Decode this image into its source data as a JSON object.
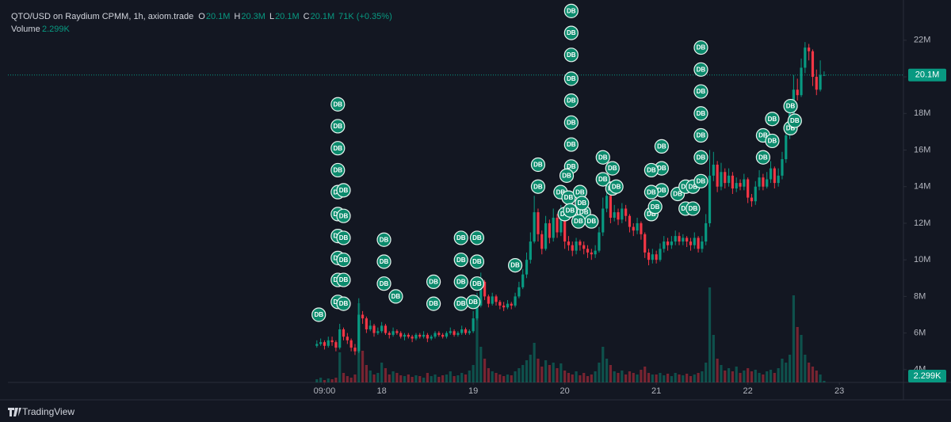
{
  "chart_data": {
    "type": "candlestick",
    "title": "QTO/USD on Raydium CPMM, 1h, axiom.trade",
    "legend": [
      {
        "key": "O",
        "value": "20.1M"
      },
      {
        "key": "H",
        "value": "20.3M"
      },
      {
        "key": "L",
        "value": "20.1M"
      },
      {
        "key": "C",
        "value": "20.1M"
      }
    ],
    "change": "71K (+0.35%)",
    "volume_label": "Volume",
    "volume_value": "2.299K",
    "last_price": {
      "value": 20.1,
      "label": "20.1M"
    },
    "last_volume_label": "2.299K",
    "brand": "TradingView",
    "up_color": "#089981",
    "down_color": "#f23645",
    "marker_color": "#0b8a6c",
    "xlim": [
      -74,
      160.8
    ],
    "ylim": [
      3.3,
      24.2
    ],
    "xticks": [
      {
        "value": 9,
        "label": "09:00"
      },
      {
        "value": 24,
        "label": "18"
      },
      {
        "value": 48,
        "label": "19"
      },
      {
        "value": 72,
        "label": "20"
      },
      {
        "value": 96,
        "label": "21"
      },
      {
        "value": 120,
        "label": "22"
      },
      {
        "value": 144,
        "label": "23"
      }
    ],
    "yticks": [
      {
        "value": 4,
        "label": "4M"
      },
      {
        "value": 6,
        "label": "6M"
      },
      {
        "value": 8,
        "label": "8M"
      },
      {
        "value": 10,
        "label": "10M"
      },
      {
        "value": 12,
        "label": "12M"
      },
      {
        "value": 14,
        "label": "14M"
      },
      {
        "value": 16,
        "label": "16M"
      },
      {
        "value": 18,
        "label": "18M"
      },
      {
        "value": 20,
        "label": "20M"
      },
      {
        "value": 22,
        "label": "22M"
      }
    ],
    "x": [
      7,
      8,
      9,
      10,
      11,
      12,
      13,
      14,
      15,
      16,
      17,
      18,
      19,
      20,
      21,
      22,
      23,
      24,
      25,
      26,
      27,
      28,
      29,
      30,
      31,
      32,
      33,
      34,
      35,
      36,
      37,
      38,
      39,
      40,
      41,
      42,
      43,
      44,
      45,
      46,
      47,
      48,
      49,
      50,
      51,
      52,
      53,
      54,
      55,
      56,
      57,
      58,
      59,
      60,
      61,
      62,
      63,
      64,
      65,
      66,
      67,
      68,
      69,
      70,
      71,
      72,
      73,
      74,
      75,
      76,
      77,
      78,
      79,
      80,
      81,
      82,
      83,
      84,
      85,
      86,
      87,
      88,
      89,
      90,
      91,
      92,
      93,
      94,
      95,
      96,
      97,
      98,
      99,
      100,
      101,
      102,
      103,
      104,
      105,
      106,
      107,
      108,
      109,
      110,
      111,
      112,
      113,
      114,
      115,
      116,
      117,
      118,
      119,
      120,
      121,
      122,
      123,
      124,
      125,
      126,
      127,
      128,
      129,
      130,
      131,
      132,
      133,
      134,
      135,
      136,
      137,
      138,
      139,
      140
    ],
    "open": [
      5.3,
      5.4,
      5.5,
      5.3,
      5.6,
      5.5,
      5.2,
      6.2,
      5.8,
      5.6,
      5.2,
      5.0,
      7.0,
      6.8,
      6.2,
      6.4,
      6.0,
      6.1,
      6.4,
      6.0,
      5.9,
      6.1,
      6.0,
      5.8,
      5.9,
      5.8,
      5.7,
      5.9,
      5.8,
      5.9,
      5.7,
      5.8,
      6.0,
      5.9,
      5.8,
      6.0,
      6.1,
      5.9,
      6.0,
      6.2,
      6.0,
      6.1,
      6.8,
      7.5,
      8.8,
      8.0,
      7.6,
      8.0,
      7.7,
      7.5,
      7.4,
      7.6,
      7.5,
      8.0,
      8.5,
      9.2,
      10.0,
      11.0,
      12.6,
      11.4,
      10.6,
      12.0,
      11.2,
      12.3,
      11.5,
      12.5,
      11.0,
      10.8,
      10.5,
      11.0,
      10.8,
      10.6,
      10.4,
      10.3,
      10.5,
      11.5,
      12.8,
      13.5,
      12.3,
      12.6,
      12.2,
      12.8,
      12.4,
      11.8,
      11.6,
      12.0,
      11.4,
      10.4,
      10.0,
      10.3,
      10.0,
      10.6,
      11.0,
      10.8,
      11.0,
      11.3,
      11.0,
      11.2,
      11.0,
      10.8,
      11.2,
      10.6,
      11.0,
      12.0,
      14.6,
      15.2,
      14.0,
      14.8,
      14.2,
      14.6,
      13.9,
      14.2,
      14.0,
      14.4,
      13.4,
      13.2,
      14.0,
      14.5,
      14.0,
      14.4,
      15.0,
      14.2,
      14.6,
      15.5,
      16.8,
      18.0,
      19.3,
      19.0,
      20.5,
      21.6,
      21.4,
      20.0,
      19.3,
      20.1
    ],
    "high": [
      5.6,
      5.7,
      5.6,
      5.8,
      5.8,
      5.6,
      6.5,
      6.3,
      6.0,
      5.7,
      5.4,
      7.9,
      7.2,
      6.9,
      6.7,
      6.5,
      6.3,
      6.6,
      6.5,
      6.1,
      6.3,
      6.2,
      6.1,
      6.0,
      6.0,
      5.9,
      6.0,
      6.0,
      6.1,
      6.0,
      5.9,
      6.1,
      6.1,
      6.0,
      6.1,
      6.3,
      6.2,
      6.1,
      6.4,
      6.3,
      6.2,
      7.2,
      8.2,
      9.3,
      8.9,
      8.1,
      8.2,
      8.1,
      7.8,
      7.7,
      7.8,
      7.7,
      8.2,
      8.8,
      9.5,
      10.4,
      11.5,
      13.5,
      12.8,
      11.6,
      12.4,
      12.2,
      12.8,
      12.5,
      13.0,
      12.6,
      11.3,
      11.0,
      11.2,
      11.1,
      11.0,
      10.8,
      10.6,
      10.8,
      11.8,
      13.4,
      14.0,
      13.6,
      13.0,
      12.8,
      13.1,
      13.0,
      12.5,
      12.0,
      12.3,
      12.1,
      11.5,
      10.6,
      10.6,
      10.5,
      10.9,
      11.3,
      11.2,
      11.3,
      11.6,
      11.5,
      11.4,
      11.3,
      11.2,
      11.5,
      11.3,
      11.3,
      12.5,
      16.0,
      15.9,
      15.4,
      15.3,
      15.0,
      15.0,
      14.8,
      14.5,
      14.4,
      14.7,
      14.5,
      13.6,
      14.3,
      14.9,
      14.7,
      14.8,
      15.4,
      15.1,
      15.0,
      15.9,
      17.2,
      18.6,
      20.1,
      19.9,
      21.0,
      21.9,
      21.8,
      21.5,
      20.4,
      20.9,
      20.3
    ],
    "low": [
      5.2,
      5.3,
      5.1,
      5.2,
      5.3,
      5.0,
      5.1,
      5.6,
      5.4,
      5.0,
      4.8,
      4.9,
      6.5,
      6.0,
      6.1,
      5.8,
      5.9,
      6.0,
      5.9,
      5.7,
      5.8,
      5.9,
      5.7,
      5.6,
      5.7,
      5.5,
      5.6,
      5.7,
      5.7,
      5.5,
      5.6,
      5.7,
      5.8,
      5.7,
      5.7,
      5.9,
      5.8,
      5.8,
      5.9,
      5.9,
      5.9,
      6.0,
      6.7,
      7.4,
      7.8,
      7.4,
      7.5,
      7.5,
      7.3,
      7.2,
      7.3,
      7.3,
      7.4,
      7.9,
      8.4,
      9.0,
      9.8,
      10.9,
      11.0,
      10.3,
      10.5,
      10.9,
      11.0,
      11.2,
      11.3,
      10.6,
      10.5,
      10.2,
      10.3,
      10.5,
      10.3,
      10.1,
      10.0,
      10.1,
      10.4,
      11.3,
      12.6,
      12.0,
      12.1,
      11.9,
      12.0,
      12.1,
      11.5,
      11.3,
      11.4,
      11.1,
      10.1,
      9.7,
      9.8,
      9.8,
      9.9,
      10.4,
      10.5,
      10.6,
      10.8,
      10.8,
      10.8,
      10.7,
      10.5,
      10.6,
      10.4,
      10.4,
      10.8,
      11.8,
      14.3,
      13.7,
      13.8,
      13.9,
      14.0,
      13.6,
      13.7,
      13.8,
      13.8,
      13.1,
      12.9,
      13.0,
      13.8,
      13.8,
      13.9,
      14.2,
      13.9,
      14.0,
      14.4,
      15.3,
      16.6,
      17.8,
      18.7,
      18.9,
      20.2,
      20.9,
      19.5,
      19.0,
      19.2,
      20.1
    ],
    "close": [
      5.4,
      5.5,
      5.3,
      5.6,
      5.5,
      5.2,
      6.2,
      5.8,
      5.6,
      5.2,
      5.0,
      7.0,
      6.8,
      6.2,
      6.4,
      6.0,
      6.1,
      6.4,
      6.0,
      5.9,
      6.1,
      6.0,
      5.8,
      5.9,
      5.8,
      5.7,
      5.9,
      5.8,
      5.9,
      5.7,
      5.8,
      6.0,
      5.9,
      5.8,
      6.0,
      6.1,
      5.9,
      6.0,
      6.2,
      6.0,
      6.1,
      6.8,
      7.5,
      8.8,
      8.0,
      7.6,
      8.0,
      7.7,
      7.5,
      7.4,
      7.6,
      7.5,
      8.0,
      8.5,
      9.2,
      10.0,
      11.0,
      12.6,
      11.4,
      10.6,
      12.0,
      11.2,
      12.3,
      11.5,
      12.5,
      11.0,
      10.8,
      10.5,
      11.0,
      10.8,
      10.6,
      10.4,
      10.3,
      10.5,
      11.5,
      12.8,
      13.5,
      12.3,
      12.6,
      12.2,
      12.8,
      12.4,
      11.8,
      11.6,
      12.0,
      11.4,
      10.4,
      10.0,
      10.3,
      10.0,
      10.6,
      11.0,
      10.8,
      11.0,
      11.3,
      11.0,
      11.2,
      11.0,
      10.8,
      11.2,
      10.6,
      11.0,
      12.0,
      14.6,
      15.2,
      14.0,
      14.8,
      14.2,
      14.6,
      13.9,
      14.2,
      14.0,
      14.4,
      13.4,
      13.2,
      14.0,
      14.5,
      14.0,
      14.4,
      15.0,
      14.2,
      14.6,
      15.5,
      16.8,
      18.0,
      19.3,
      19.0,
      20.5,
      21.6,
      21.4,
      20.0,
      19.3,
      20.1,
      20.1
    ],
    "volume": [
      4,
      6,
      3,
      5,
      4,
      6,
      38,
      12,
      8,
      6,
      10,
      100,
      40,
      22,
      15,
      10,
      12,
      25,
      18,
      10,
      14,
      12,
      9,
      8,
      10,
      7,
      9,
      8,
      6,
      12,
      8,
      10,
      7,
      9,
      10,
      14,
      8,
      9,
      12,
      10,
      15,
      22,
      110,
      45,
      30,
      18,
      14,
      12,
      10,
      8,
      10,
      9,
      14,
      18,
      22,
      28,
      35,
      50,
      30,
      20,
      28,
      22,
      25,
      18,
      24,
      15,
      12,
      10,
      14,
      9,
      12,
      8,
      10,
      14,
      25,
      45,
      30,
      22,
      14,
      12,
      15,
      10,
      14,
      12,
      10,
      16,
      20,
      12,
      10,
      10,
      12,
      9,
      11,
      8,
      12,
      10,
      9,
      11,
      8,
      10,
      12,
      14,
      25,
      120,
      60,
      30,
      22,
      15,
      18,
      14,
      20,
      12,
      15,
      18,
      14,
      16,
      12,
      10,
      14,
      16,
      12,
      18,
      30,
      25,
      35,
      110,
      70,
      60,
      35,
      25,
      20,
      15,
      10,
      2
    ],
    "markers": [
      {
        "time": 7.5,
        "price": 7.0,
        "text": "DB"
      },
      {
        "time": 12.5,
        "price": 18.5,
        "text": "DB"
      },
      {
        "time": 12.5,
        "price": 17.3,
        "text": "DB"
      },
      {
        "time": 12.5,
        "price": 16.1,
        "text": "DB"
      },
      {
        "time": 12.5,
        "price": 14.9,
        "text": "DB"
      },
      {
        "time": 12.5,
        "price": 13.7,
        "text": "DB"
      },
      {
        "time": 12.5,
        "price": 12.5,
        "text": "DB"
      },
      {
        "time": 12.5,
        "price": 11.3,
        "text": "DB"
      },
      {
        "time": 12.5,
        "price": 10.1,
        "text": "DB"
      },
      {
        "time": 12.5,
        "price": 8.9,
        "text": "DB"
      },
      {
        "time": 12.5,
        "price": 7.7,
        "text": "DB"
      },
      {
        "time": 14,
        "price": 13.8,
        "text": "DB"
      },
      {
        "time": 14,
        "price": 12.4,
        "text": "DB"
      },
      {
        "time": 14,
        "price": 11.2,
        "text": "DB"
      },
      {
        "time": 14,
        "price": 10.0,
        "text": "DB"
      },
      {
        "time": 14,
        "price": 8.9,
        "text": "DB"
      },
      {
        "time": 14,
        "price": 7.6,
        "text": "DB"
      },
      {
        "time": 24.6,
        "price": 11.1,
        "text": "DB"
      },
      {
        "time": 24.6,
        "price": 9.9,
        "text": "DB"
      },
      {
        "time": 24.6,
        "price": 8.7,
        "text": "DB"
      },
      {
        "time": 27.7,
        "price": 8.0,
        "text": "DB"
      },
      {
        "time": 37.6,
        "price": 8.8,
        "text": "DB"
      },
      {
        "time": 37.6,
        "price": 7.6,
        "text": "DB"
      },
      {
        "time": 44.8,
        "price": 11.2,
        "text": "DB"
      },
      {
        "time": 44.8,
        "price": 10.0,
        "text": "DB"
      },
      {
        "time": 44.8,
        "price": 8.8,
        "text": "DB"
      },
      {
        "time": 44.8,
        "price": 7.6,
        "text": "DB"
      },
      {
        "time": 49,
        "price": 11.2,
        "text": "DB"
      },
      {
        "time": 49,
        "price": 9.9,
        "text": "DB"
      },
      {
        "time": 49,
        "price": 8.7,
        "text": "DB"
      },
      {
        "time": 48,
        "price": 7.7,
        "text": "DB"
      },
      {
        "time": 59,
        "price": 9.7,
        "text": "DB"
      },
      {
        "time": 65,
        "price": 15.2,
        "text": "DB"
      },
      {
        "time": 65,
        "price": 14.0,
        "text": "DB"
      },
      {
        "time": 73.7,
        "price": 23.6,
        "text": "DB"
      },
      {
        "time": 73.7,
        "price": 22.4,
        "text": "DB"
      },
      {
        "time": 73.7,
        "price": 21.2,
        "text": "DB"
      },
      {
        "time": 73.7,
        "price": 19.9,
        "text": "DB"
      },
      {
        "time": 73.7,
        "price": 18.7,
        "text": "DB"
      },
      {
        "time": 73.7,
        "price": 17.5,
        "text": "DB"
      },
      {
        "time": 73.7,
        "price": 16.3,
        "text": "DB"
      },
      {
        "time": 73.7,
        "price": 15.1,
        "text": "DB"
      },
      {
        "time": 72.5,
        "price": 14.6,
        "text": "DB"
      },
      {
        "time": 70.9,
        "price": 13.7,
        "text": "DB"
      },
      {
        "time": 73,
        "price": 13.4,
        "text": "DB"
      },
      {
        "time": 72,
        "price": 12.5,
        "text": "DB"
      },
      {
        "time": 76,
        "price": 13.7,
        "text": "DB"
      },
      {
        "time": 77,
        "price": 12.6,
        "text": "DB"
      },
      {
        "time": 79,
        "price": 12.1,
        "text": "DB"
      },
      {
        "time": 75.6,
        "price": 12.1,
        "text": "DB"
      },
      {
        "time": 73.4,
        "price": 12.7,
        "text": "DB"
      },
      {
        "time": 76.5,
        "price": 13.1,
        "text": "DB"
      },
      {
        "time": 82,
        "price": 15.6,
        "text": "DB"
      },
      {
        "time": 82,
        "price": 14.4,
        "text": "DB"
      },
      {
        "time": 84.5,
        "price": 15.0,
        "text": "DB"
      },
      {
        "time": 84.5,
        "price": 13.9,
        "text": "DB"
      },
      {
        "time": 85.5,
        "price": 14.0,
        "text": "DB"
      },
      {
        "time": 97.4,
        "price": 16.2,
        "text": "DB"
      },
      {
        "time": 97.4,
        "price": 15.0,
        "text": "DB"
      },
      {
        "time": 97.4,
        "price": 13.8,
        "text": "DB"
      },
      {
        "time": 94.7,
        "price": 14.9,
        "text": "DB"
      },
      {
        "time": 94.7,
        "price": 13.7,
        "text": "DB"
      },
      {
        "time": 94.7,
        "price": 12.5,
        "text": "DB"
      },
      {
        "time": 95.7,
        "price": 12.9,
        "text": "DB"
      },
      {
        "time": 101.6,
        "price": 13.6,
        "text": "DB"
      },
      {
        "time": 103.7,
        "price": 14.0,
        "text": "DB"
      },
      {
        "time": 103.7,
        "price": 12.8,
        "text": "DB"
      },
      {
        "time": 105.6,
        "price": 14.0,
        "text": "DB"
      },
      {
        "time": 105.6,
        "price": 12.8,
        "text": "DB"
      },
      {
        "time": 107.7,
        "price": 21.6,
        "text": "DB"
      },
      {
        "time": 107.7,
        "price": 20.4,
        "text": "DB"
      },
      {
        "time": 107.7,
        "price": 19.2,
        "text": "DB"
      },
      {
        "time": 107.7,
        "price": 18.0,
        "text": "DB"
      },
      {
        "time": 107.7,
        "price": 16.8,
        "text": "DB"
      },
      {
        "time": 107.7,
        "price": 15.6,
        "text": "DB"
      },
      {
        "time": 107.7,
        "price": 14.3,
        "text": "DB"
      },
      {
        "time": 124,
        "price": 15.6,
        "text": "DB"
      },
      {
        "time": 124,
        "price": 16.8,
        "text": "DB"
      },
      {
        "time": 126.4,
        "price": 17.7,
        "text": "DB"
      },
      {
        "time": 126.4,
        "price": 16.5,
        "text": "DB"
      },
      {
        "time": 131.2,
        "price": 18.4,
        "text": "DB"
      },
      {
        "time": 131.2,
        "price": 17.2,
        "text": "DB"
      },
      {
        "time": 132.3,
        "price": 17.6,
        "text": "DB"
      }
    ]
  }
}
